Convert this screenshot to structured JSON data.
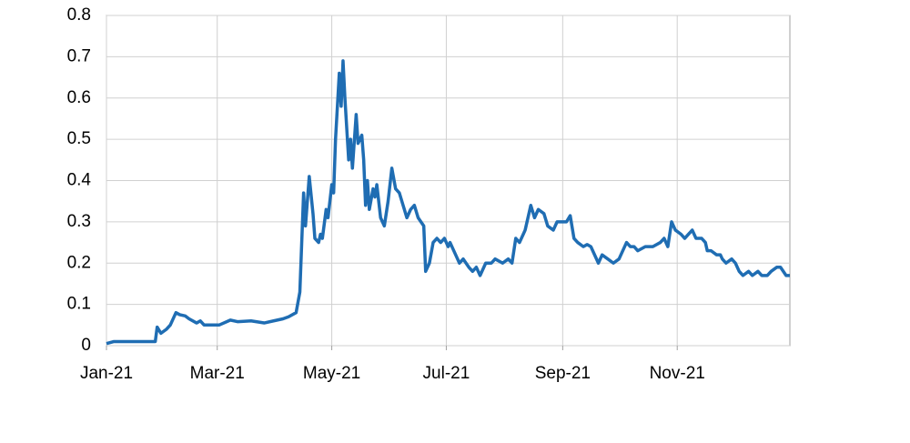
{
  "chart_data": {
    "type": "line",
    "x": [
      0,
      4,
      9,
      16,
      23,
      26,
      27,
      29,
      32,
      34,
      37,
      39,
      42,
      44,
      48,
      50,
      52,
      60,
      66,
      70,
      77,
      84,
      89,
      94,
      97,
      101,
      103,
      105,
      106,
      108,
      110,
      111,
      113,
      114,
      115,
      117,
      118,
      120,
      121,
      122,
      124,
      125,
      126,
      127,
      129,
      130,
      131,
      133,
      134,
      136,
      137,
      138,
      139,
      140,
      142,
      143,
      144,
      146,
      148,
      150,
      152,
      154,
      156,
      158,
      160,
      162,
      164,
      166,
      169,
      170,
      172,
      174,
      176,
      178,
      180,
      182,
      183,
      186,
      188,
      190,
      193,
      195,
      197,
      199,
      202,
      205,
      207,
      211,
      214,
      216,
      218,
      220,
      222,
      223,
      226,
      228,
      230,
      233,
      235,
      238,
      240,
      245,
      247,
      249,
      251,
      254,
      256,
      258,
      262,
      264,
      267,
      270,
      273,
      277,
      279,
      281,
      283,
      287,
      291,
      295,
      297,
      299,
      301,
      303,
      306,
      308,
      310,
      312,
      314,
      317,
      319,
      320,
      322,
      325,
      327,
      328,
      330,
      333,
      335,
      337,
      339,
      342,
      344,
      347,
      349,
      352,
      354,
      357,
      359,
      362,
      364
    ],
    "series": [
      {
        "color": "#1f6db3",
        "values": [
          0.005,
          0.01,
          0.01,
          0.01,
          0.01,
          0.01,
          0.045,
          0.03,
          0.04,
          0.05,
          0.08,
          0.075,
          0.072,
          0.065,
          0.055,
          0.06,
          0.05,
          0.05,
          0.062,
          0.058,
          0.06,
          0.055,
          0.06,
          0.065,
          0.07,
          0.08,
          0.13,
          0.37,
          0.29,
          0.41,
          0.32,
          0.26,
          0.25,
          0.27,
          0.26,
          0.33,
          0.31,
          0.39,
          0.37,
          0.5,
          0.66,
          0.58,
          0.69,
          0.6,
          0.45,
          0.5,
          0.43,
          0.56,
          0.49,
          0.51,
          0.45,
          0.34,
          0.4,
          0.33,
          0.38,
          0.36,
          0.39,
          0.31,
          0.29,
          0.35,
          0.43,
          0.38,
          0.37,
          0.34,
          0.31,
          0.33,
          0.34,
          0.31,
          0.29,
          0.18,
          0.2,
          0.25,
          0.26,
          0.25,
          0.26,
          0.24,
          0.25,
          0.22,
          0.2,
          0.21,
          0.19,
          0.18,
          0.19,
          0.17,
          0.2,
          0.2,
          0.21,
          0.2,
          0.21,
          0.2,
          0.26,
          0.25,
          0.27,
          0.28,
          0.34,
          0.31,
          0.33,
          0.32,
          0.29,
          0.28,
          0.3,
          0.3,
          0.315,
          0.26,
          0.25,
          0.24,
          0.245,
          0.24,
          0.2,
          0.22,
          0.21,
          0.2,
          0.21,
          0.25,
          0.24,
          0.24,
          0.23,
          0.24,
          0.24,
          0.25,
          0.26,
          0.24,
          0.3,
          0.28,
          0.27,
          0.26,
          0.27,
          0.28,
          0.26,
          0.26,
          0.25,
          0.23,
          0.23,
          0.22,
          0.22,
          0.21,
          0.2,
          0.21,
          0.2,
          0.18,
          0.17,
          0.18,
          0.17,
          0.18,
          0.17,
          0.17,
          0.18,
          0.19,
          0.19,
          0.17,
          0.17
        ]
      }
    ],
    "xlim": [
      0,
      364
    ],
    "xticks": [
      {
        "value": 0,
        "label": "Jan-21"
      },
      {
        "value": 59,
        "label": "Mar-21"
      },
      {
        "value": 120,
        "label": "May-21"
      },
      {
        "value": 181,
        "label": "Jul-21"
      },
      {
        "value": 243,
        "label": "Sep-21"
      },
      {
        "value": 304,
        "label": "Nov-21"
      }
    ],
    "ylim": [
      0,
      0.8
    ],
    "yticks": [
      0,
      0.1,
      0.2,
      0.3,
      0.4,
      0.5,
      0.6,
      0.7,
      0.8
    ],
    "grid": true
  }
}
